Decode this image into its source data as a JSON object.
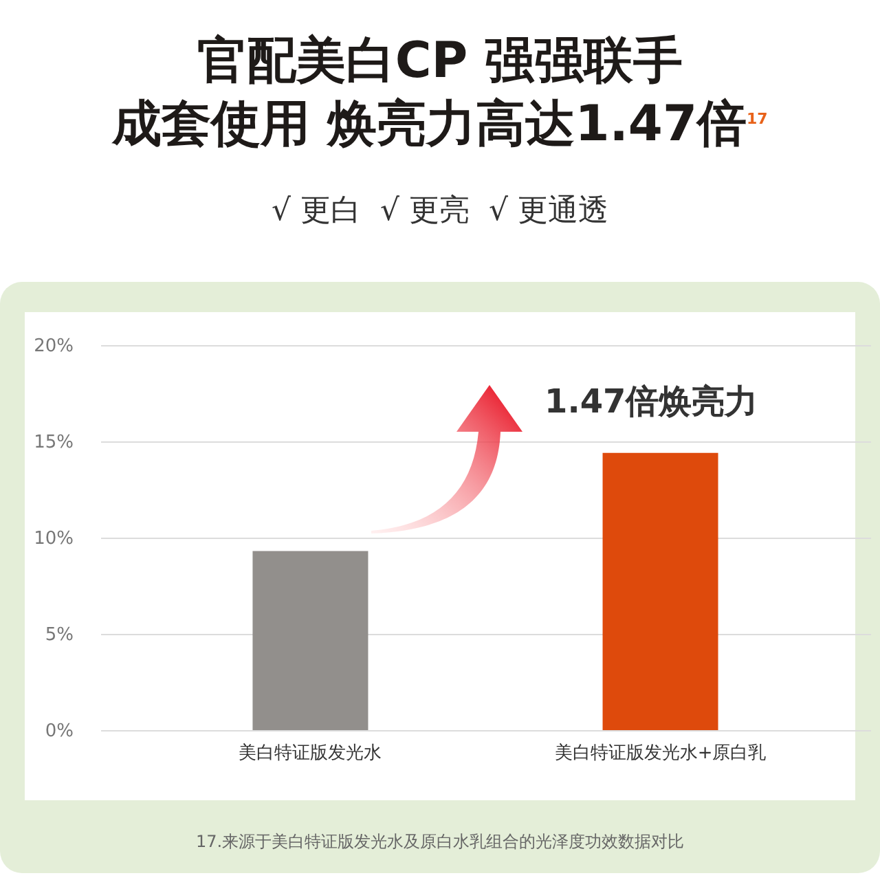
{
  "chart_data": {
    "type": "bar",
    "title": "官配美白CP 强强联手",
    "subtitle": "成套使用 焕亮力高达1.47倍$^{17}$",
    "categories": [
      "美白特证版发光水",
      "美白特证版发光水+原白乳"
    ],
    "values": [
      9.3,
      14.4
    ],
    "colors": [
      "#928f8c",
      "#de4a0c"
    ],
    "ylim": [
      0,
      20
    ],
    "yticks": [
      {
        "value": 0,
        "label": "0%"
      },
      {
        "value": 5,
        "label": "5%"
      },
      {
        "value": 10,
        "label": "10%"
      },
      {
        "value": 15,
        "label": "15%"
      },
      {
        "value": 20,
        "label": "20%"
      }
    ],
    "grid": "y",
    "annotations": [
      "√ 更白  √ 更亮  √ 更通透",
      "1.47倍焕亮力",
      "17.来源于美白特证版发光水及原白水乳组合的光泽度功效数据对比"
    ]
  }
}
